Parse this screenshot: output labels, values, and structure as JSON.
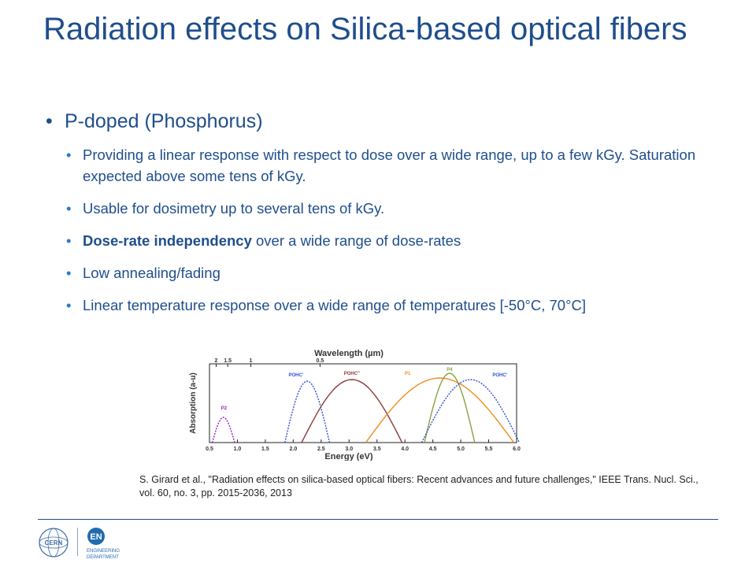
{
  "slide": {
    "title": "Radiation effects on Silica-based optical fibers",
    "main_bullet": "P-doped (Phosphorus)",
    "sub_bullets": [
      {
        "bold": "",
        "text": "Providing a linear response with respect to dose over a wide range, up to a few kGy. Saturation expected above some tens of kGy."
      },
      {
        "bold": "",
        "text": "Usable for dosimetry up to several tens of kGy."
      },
      {
        "bold": "Dose-rate independency",
        "text": " over a wide range of dose-rates"
      },
      {
        "bold": "",
        "text": "Low annealing/fading"
      },
      {
        "bold": "",
        "text": "Linear temperature response over a wide range of temperatures [-50°C, 70°C]"
      }
    ],
    "citation": "S. Girard et al., \"Radiation effects on silica-based optical fibers: Recent advances and future challenges,\" IEEE Trans. Nucl. Sci., vol. 60, no. 3, pp. 2015-2036, 2013"
  },
  "figure": {
    "top_axis_title": "Wavelength (µm)",
    "top_ticks": [
      "2",
      "1.5",
      "1",
      "0.5"
    ],
    "x_axis_title": "Energy (eV)",
    "y_axis_title": "Absorption (a-u)",
    "x_ticks": [
      "0.5",
      "1.0",
      "1.5",
      "2.0",
      "2.5",
      "3.0",
      "3.5",
      "4.0",
      "4.5",
      "5.0",
      "5.5",
      "6.0"
    ],
    "band_labels": [
      "P2",
      "POHC'",
      "POHC''",
      "P1",
      "P4",
      "POHC'"
    ],
    "colors": {
      "P2": "#a020c0",
      "POHC1": "#3050d0",
      "POHC2": "#8b3a3a",
      "P1": "#f08c1a",
      "P4": "#8aa040",
      "POHC3": "#3050d0"
    }
  },
  "footer": {
    "logo_cern_text": "CERN",
    "logo_en_text": "EN",
    "logo_en_subtitle_1": "ENGINEERING",
    "logo_en_subtitle_2": "DEPARTMENT"
  }
}
